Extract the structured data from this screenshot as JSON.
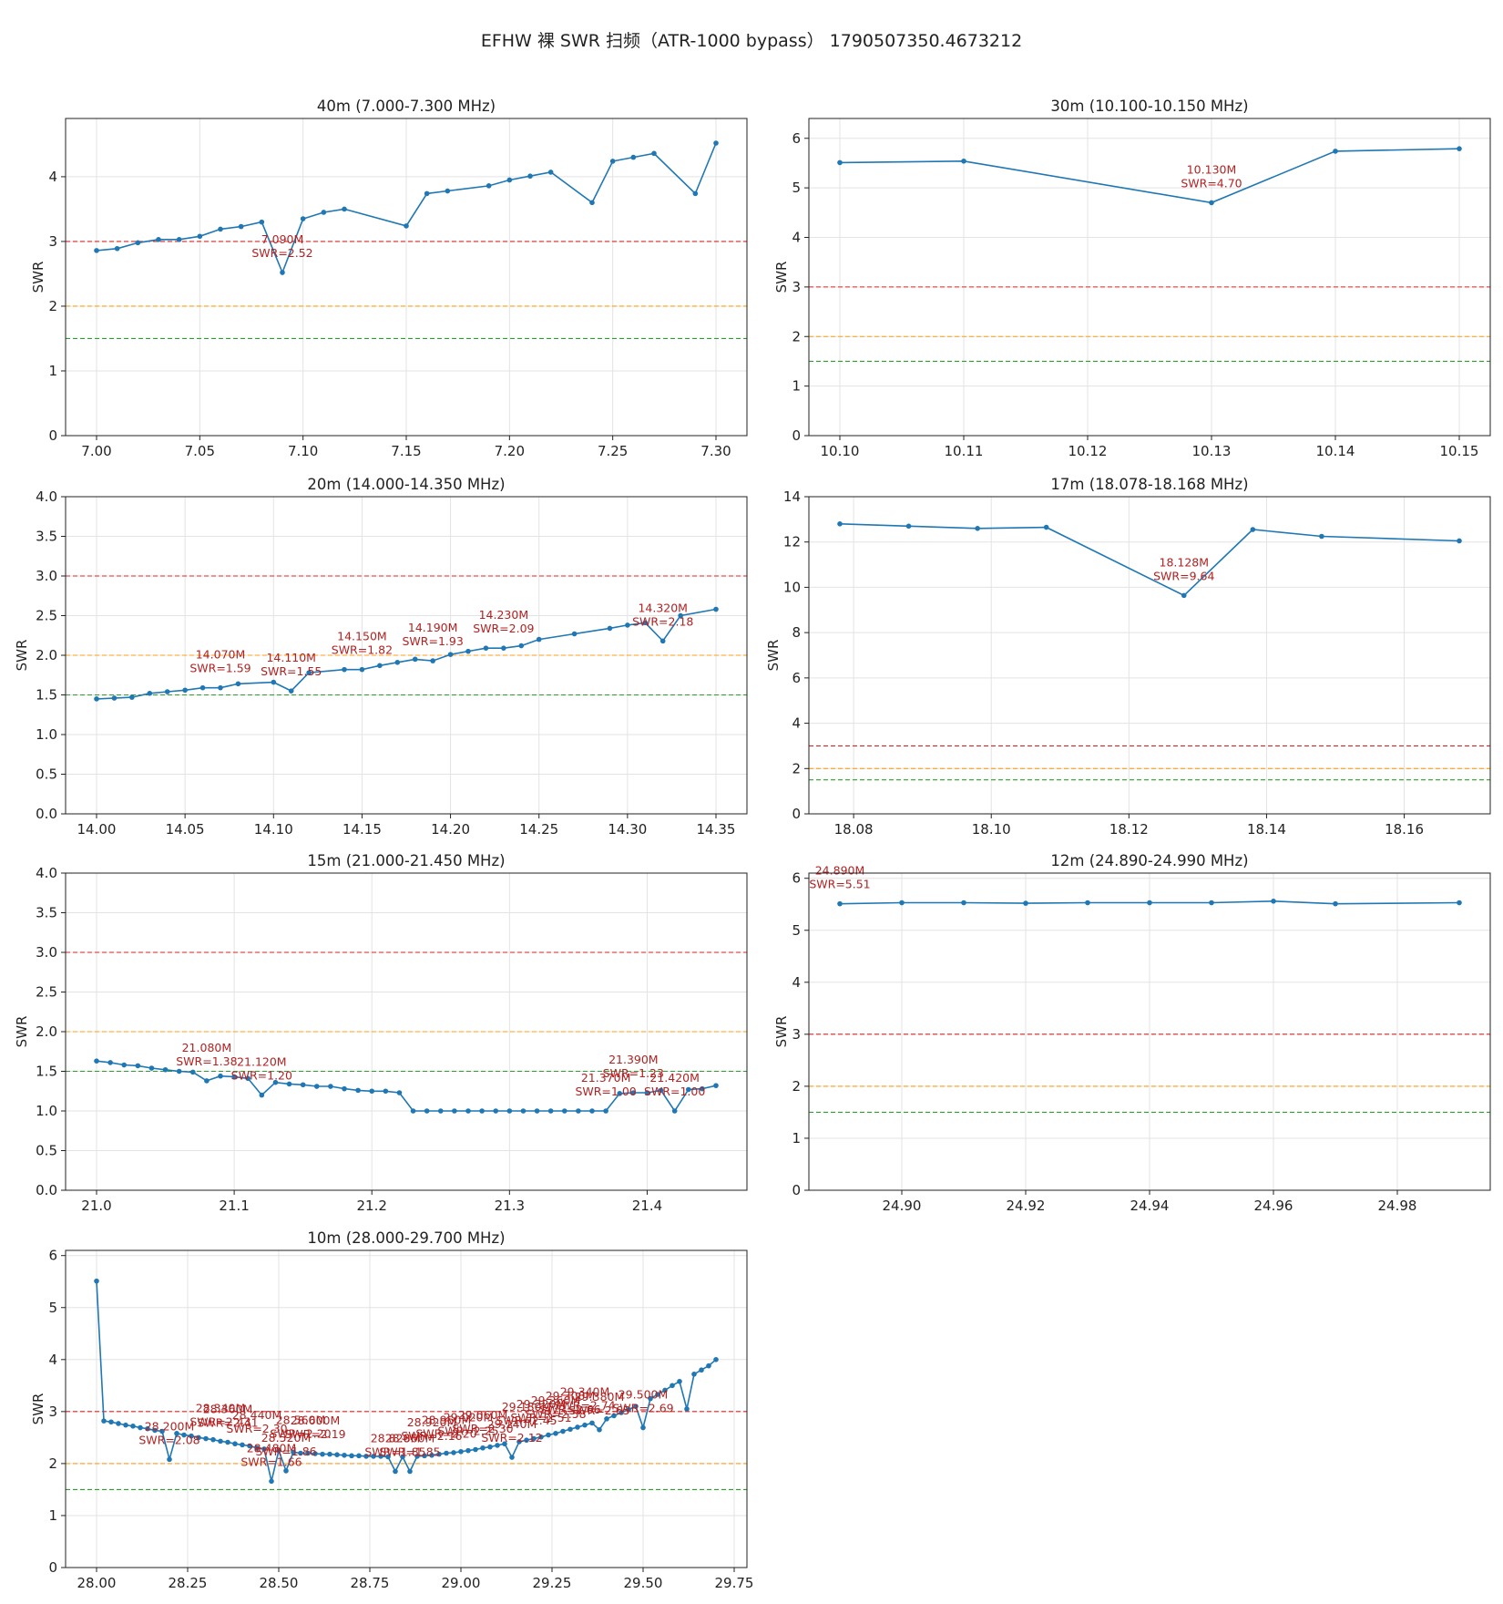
{
  "figure": {
    "title": "EFHW 裸 SWR 扫频（ATR-1000 bypass）  1790507350.4673212"
  },
  "colors": {
    "line": "#1f77b4",
    "red": "#d62728",
    "orange": "#ff9f10",
    "green": "#2ca02c",
    "annotation": "#b22222"
  },
  "chart_data": [
    {
      "type": "line",
      "title": "40m  (7.000-7.300 MHz)",
      "ylabel": "SWR",
      "xlim": [
        6.985,
        7.315
      ],
      "ylim": [
        0,
        4.9
      ],
      "xticks": [
        7.0,
        7.05,
        7.1,
        7.15,
        7.2,
        7.25,
        7.3
      ],
      "xtick_labels": [
        "7.00",
        "7.05",
        "7.10",
        "7.15",
        "7.20",
        "7.25",
        "7.30"
      ],
      "yticks": [
        0,
        1,
        2,
        3,
        4
      ],
      "ytick_labels": [
        "0",
        "1",
        "2",
        "3",
        "4"
      ],
      "reference_lines": [
        3.0,
        2.0,
        1.5
      ],
      "x": [
        7.0,
        7.01,
        7.02,
        7.03,
        7.04,
        7.05,
        7.06,
        7.07,
        7.08,
        7.09,
        7.1,
        7.11,
        7.12,
        7.15,
        7.16,
        7.17,
        7.19,
        7.2,
        7.21,
        7.22,
        7.24,
        7.25,
        7.26,
        7.27,
        7.29,
        7.3
      ],
      "y": [
        2.86,
        2.89,
        2.98,
        3.03,
        3.03,
        3.08,
        3.19,
        3.23,
        3.3,
        2.52,
        3.35,
        3.45,
        3.5,
        3.24,
        3.74,
        3.78,
        3.86,
        3.95,
        4.01,
        4.07,
        3.6,
        4.24,
        4.3,
        4.36,
        3.74,
        4.52
      ],
      "annotations": [
        {
          "x": 7.09,
          "y": 2.52,
          "lines": [
            "7.090M",
            "SWR=2.52"
          ]
        }
      ]
    },
    {
      "type": "line",
      "title": "30m  (10.100-10.150 MHz)",
      "ylabel": "SWR",
      "xlim": [
        10.0975,
        10.1525
      ],
      "ylim": [
        0,
        6.4
      ],
      "xticks": [
        10.1,
        10.11,
        10.12,
        10.13,
        10.14,
        10.15
      ],
      "xtick_labels": [
        "10.10",
        "10.11",
        "10.12",
        "10.13",
        "10.14",
        "10.15"
      ],
      "yticks": [
        0,
        1,
        2,
        3,
        4,
        5,
        6
      ],
      "ytick_labels": [
        "0",
        "1",
        "2",
        "3",
        "4",
        "5",
        "6"
      ],
      "reference_lines": [
        3.0,
        2.0,
        1.5
      ],
      "x": [
        10.1,
        10.11,
        10.13,
        10.14,
        10.15
      ],
      "y": [
        5.51,
        5.54,
        4.7,
        5.74,
        5.79
      ],
      "annotations": [
        {
          "x": 10.13,
          "y": 4.7,
          "lines": [
            "10.130M",
            "SWR=4.70"
          ]
        }
      ]
    },
    {
      "type": "line",
      "title": "20m  (14.000-14.350 MHz)",
      "ylabel": "SWR",
      "xlim": [
        13.9825,
        14.3675
      ],
      "ylim": [
        0,
        4.0
      ],
      "xticks": [
        14.0,
        14.05,
        14.1,
        14.15,
        14.2,
        14.25,
        14.3,
        14.35
      ],
      "xtick_labels": [
        "14.00",
        "14.05",
        "14.10",
        "14.15",
        "14.20",
        "14.25",
        "14.30",
        "14.35"
      ],
      "yticks": [
        0.0,
        0.5,
        1.0,
        1.5,
        2.0,
        2.5,
        3.0,
        3.5,
        4.0
      ],
      "ytick_labels": [
        "0.0",
        "0.5",
        "1.0",
        "1.5",
        "2.0",
        "2.5",
        "3.0",
        "3.5",
        "4.0"
      ],
      "reference_lines": [
        3.0,
        2.0,
        1.5
      ],
      "x": [
        14.0,
        14.01,
        14.02,
        14.03,
        14.04,
        14.05,
        14.06,
        14.07,
        14.08,
        14.1,
        14.11,
        14.12,
        14.14,
        14.15,
        14.16,
        14.17,
        14.18,
        14.19,
        14.2,
        14.21,
        14.22,
        14.23,
        14.24,
        14.25,
        14.27,
        14.29,
        14.3,
        14.31,
        14.32,
        14.33,
        14.35
      ],
      "y": [
        1.45,
        1.46,
        1.47,
        1.52,
        1.54,
        1.56,
        1.59,
        1.59,
        1.64,
        1.66,
        1.55,
        1.78,
        1.82,
        1.82,
        1.87,
        1.91,
        1.95,
        1.93,
        2.01,
        2.05,
        2.09,
        2.09,
        2.12,
        2.2,
        2.27,
        2.34,
        2.38,
        2.41,
        2.18,
        2.5,
        2.58
      ],
      "annotations": [
        {
          "x": 14.07,
          "y": 1.59,
          "lines": [
            "14.070M",
            "SWR=1.59"
          ]
        },
        {
          "x": 14.11,
          "y": 1.55,
          "lines": [
            "14.110M",
            "SWR=1.55"
          ]
        },
        {
          "x": 14.15,
          "y": 1.82,
          "lines": [
            "14.150M",
            "SWR=1.82"
          ]
        },
        {
          "x": 14.19,
          "y": 1.93,
          "lines": [
            "14.190M",
            "SWR=1.93"
          ]
        },
        {
          "x": 14.23,
          "y": 2.09,
          "lines": [
            "14.230M",
            "SWR=2.09"
          ]
        },
        {
          "x": 14.32,
          "y": 2.18,
          "lines": [
            "14.320M",
            "SWR=2.18"
          ]
        }
      ]
    },
    {
      "type": "line",
      "title": "17m  (18.078-18.168 MHz)",
      "ylabel": "SWR",
      "xlim": [
        18.0735,
        18.1725
      ],
      "ylim": [
        0,
        14
      ],
      "xticks": [
        18.08,
        18.1,
        18.12,
        18.14,
        18.16
      ],
      "xtick_labels": [
        "18.08",
        "18.10",
        "18.12",
        "18.14",
        "18.16"
      ],
      "yticks": [
        0,
        2,
        4,
        6,
        8,
        10,
        12,
        14
      ],
      "ytick_labels": [
        "0",
        "2",
        "4",
        "6",
        "8",
        "10",
        "12",
        "14"
      ],
      "reference_lines": [
        3.0,
        2.0,
        1.5
      ],
      "x": [
        18.078,
        18.088,
        18.098,
        18.108,
        18.128,
        18.138,
        18.148,
        18.168
      ],
      "y": [
        12.8,
        12.7,
        12.6,
        12.65,
        9.64,
        12.55,
        12.25,
        12.05
      ],
      "annotations": [
        {
          "x": 18.128,
          "y": 9.64,
          "lines": [
            "18.128M",
            "SWR=9.64"
          ]
        }
      ]
    },
    {
      "type": "line",
      "title": "15m  (21.000-21.450 MHz)",
      "ylabel": "SWR",
      "xlim": [
        20.9775,
        21.4725
      ],
      "ylim": [
        0,
        4.0
      ],
      "xticks": [
        21.0,
        21.1,
        21.2,
        21.3,
        21.4
      ],
      "xtick_labels": [
        "21.0",
        "21.1",
        "21.2",
        "21.3",
        "21.4"
      ],
      "yticks": [
        0.0,
        0.5,
        1.0,
        1.5,
        2.0,
        2.5,
        3.0,
        3.5,
        4.0
      ],
      "ytick_labels": [
        "0.0",
        "0.5",
        "1.0",
        "1.5",
        "2.0",
        "2.5",
        "3.0",
        "3.5",
        "4.0"
      ],
      "reference_lines": [
        3.0,
        2.0,
        1.5
      ],
      "x": [
        21.0,
        21.01,
        21.02,
        21.03,
        21.04,
        21.05,
        21.06,
        21.07,
        21.08,
        21.09,
        21.1,
        21.11,
        21.12,
        21.13,
        21.14,
        21.15,
        21.16,
        21.17,
        21.18,
        21.19,
        21.2,
        21.21,
        21.22,
        21.23,
        21.24,
        21.25,
        21.26,
        21.27,
        21.28,
        21.29,
        21.3,
        21.31,
        21.32,
        21.33,
        21.34,
        21.35,
        21.36,
        21.37,
        21.38,
        21.39,
        21.4,
        21.41,
        21.42,
        21.43,
        21.44,
        21.45
      ],
      "y": [
        1.63,
        1.61,
        1.58,
        1.57,
        1.54,
        1.52,
        1.5,
        1.49,
        1.38,
        1.44,
        1.43,
        1.41,
        1.2,
        1.36,
        1.34,
        1.33,
        1.31,
        1.31,
        1.28,
        1.26,
        1.25,
        1.25,
        1.23,
        1.0,
        1.0,
        1.0,
        1.0,
        1.0,
        1.0,
        1.0,
        1.0,
        1.0,
        1.0,
        1.0,
        1.0,
        1.0,
        1.0,
        1.0,
        1.22,
        1.23,
        1.23,
        1.26,
        1.0,
        1.27,
        1.28,
        1.32
      ],
      "annotations": [
        {
          "x": 21.08,
          "y": 1.38,
          "lines": [
            "21.080M",
            "SWR=1.38"
          ]
        },
        {
          "x": 21.12,
          "y": 1.2,
          "lines": [
            "21.120M",
            "SWR=1.20"
          ]
        },
        {
          "x": 21.37,
          "y": 1.0,
          "lines": [
            "21.370M",
            "SWR=1.00"
          ]
        },
        {
          "x": 21.39,
          "y": 1.23,
          "lines": [
            "21.390M",
            "SWR=1.23"
          ]
        },
        {
          "x": 21.42,
          "y": 1.0,
          "lines": [
            "21.420M",
            "SWR=1.00"
          ]
        }
      ]
    },
    {
      "type": "line",
      "title": "12m  (24.890-24.990 MHz)",
      "ylabel": "SWR",
      "xlim": [
        24.885,
        24.995
      ],
      "ylim": [
        0,
        6.1
      ],
      "xticks": [
        24.9,
        24.92,
        24.94,
        24.96,
        24.98
      ],
      "xtick_labels": [
        "24.90",
        "24.92",
        "24.94",
        "24.96",
        "24.98"
      ],
      "yticks": [
        0,
        1,
        2,
        3,
        4,
        5,
        6
      ],
      "ytick_labels": [
        "0",
        "1",
        "2",
        "3",
        "4",
        "5",
        "6"
      ],
      "reference_lines": [
        3.0,
        2.0,
        1.5
      ],
      "x": [
        24.89,
        24.9,
        24.91,
        24.92,
        24.93,
        24.94,
        24.95,
        24.96,
        24.97,
        24.99
      ],
      "y": [
        5.51,
        5.53,
        5.53,
        5.52,
        5.53,
        5.53,
        5.53,
        5.56,
        5.51,
        5.53
      ],
      "annotations": [
        {
          "x": 24.89,
          "y": 5.51,
          "lines": [
            "24.890M",
            "SWR=5.51"
          ]
        }
      ]
    },
    {
      "type": "line",
      "title": "10m  (28.000-29.700 MHz)",
      "ylabel": "SWR",
      "xlim": [
        27.915,
        29.785
      ],
      "ylim": [
        0,
        6.1
      ],
      "xticks": [
        28.0,
        28.25,
        28.5,
        28.75,
        29.0,
        29.25,
        29.5,
        29.75
      ],
      "xtick_labels": [
        "28.00",
        "28.25",
        "28.50",
        "28.75",
        "29.00",
        "29.25",
        "29.50",
        "29.75"
      ],
      "yticks": [
        0,
        1,
        2,
        3,
        4,
        5,
        6
      ],
      "ytick_labels": [
        "0",
        "1",
        "2",
        "3",
        "4",
        "5",
        "6"
      ],
      "reference_lines": [
        3.0,
        2.0,
        1.5
      ],
      "x": [
        28.0,
        28.02,
        28.04,
        28.06,
        28.08,
        28.1,
        28.12,
        28.14,
        28.16,
        28.18,
        28.2,
        28.22,
        28.24,
        28.26,
        28.28,
        28.3,
        28.32,
        28.34,
        28.36,
        28.38,
        28.4,
        28.42,
        28.44,
        28.46,
        28.48,
        28.5,
        28.52,
        28.54,
        28.56,
        28.58,
        28.6,
        28.62,
        28.64,
        28.66,
        28.68,
        28.7,
        28.72,
        28.74,
        28.76,
        28.78,
        28.8,
        28.82,
        28.84,
        28.86,
        28.88,
        28.9,
        28.92,
        28.94,
        28.96,
        28.98,
        29.0,
        29.02,
        29.04,
        29.06,
        29.08,
        29.1,
        29.12,
        29.14,
        29.16,
        29.18,
        29.2,
        29.22,
        29.24,
        29.26,
        29.28,
        29.3,
        29.32,
        29.34,
        29.36,
        29.38,
        29.4,
        29.42,
        29.44,
        29.46,
        29.48,
        29.5,
        29.52,
        29.54,
        29.56,
        29.58,
        29.6,
        29.62,
        29.64,
        29.66,
        29.68,
        29.7
      ],
      "y": [
        5.51,
        2.82,
        2.8,
        2.77,
        2.74,
        2.72,
        2.69,
        2.67,
        2.64,
        2.62,
        2.08,
        2.58,
        2.55,
        2.53,
        2.5,
        2.48,
        2.46,
        2.43,
        2.41,
        2.38,
        2.36,
        2.34,
        2.3,
        2.28,
        1.66,
        2.25,
        1.86,
        2.22,
        2.2,
        2.2,
        2.19,
        2.18,
        2.18,
        2.17,
        2.16,
        2.15,
        2.15,
        2.14,
        2.14,
        2.14,
        2.13,
        1.85,
        2.13,
        1.85,
        2.14,
        2.15,
        2.16,
        2.18,
        2.2,
        2.21,
        2.23,
        2.25,
        2.27,
        2.3,
        2.32,
        2.35,
        2.38,
        2.12,
        2.42,
        2.45,
        2.48,
        2.51,
        2.55,
        2.58,
        2.62,
        2.66,
        2.7,
        2.74,
        2.78,
        2.65,
        2.86,
        2.92,
        2.98,
        3.04,
        3.1,
        2.69,
        3.25,
        3.33,
        3.41,
        3.5,
        3.58,
        3.05,
        3.72,
        3.8,
        3.88,
        4.0
      ],
      "annotations": [
        {
          "x": 28.2,
          "y": 2.08,
          "lines": [
            "28.200M",
            "SWR=2.08"
          ]
        },
        {
          "x": 28.34,
          "y": 2.43,
          "lines": [
            "28.340M",
            "SWR=2.43"
          ]
        },
        {
          "x": 28.36,
          "y": 2.41,
          "lines": [
            "28.360M",
            "SWR=2.41"
          ]
        },
        {
          "x": 28.44,
          "y": 2.3,
          "lines": [
            "28.440M",
            "SWR=2.30"
          ]
        },
        {
          "x": 28.48,
          "y": 1.66,
          "lines": [
            "28.480M",
            "SWR=1.66"
          ]
        },
        {
          "x": 28.52,
          "y": 1.86,
          "lines": [
            "28.520M",
            "SWR=1.86"
          ]
        },
        {
          "x": 28.56,
          "y": 2.2,
          "lines": [
            "28.560M",
            "SWR=2.20"
          ]
        },
        {
          "x": 28.6,
          "y": 2.19,
          "lines": [
            "28.600M",
            "SWR=2.19"
          ]
        },
        {
          "x": 28.82,
          "y": 1.85,
          "lines": [
            "28.820M",
            "SWR=1.85"
          ]
        },
        {
          "x": 28.86,
          "y": 1.85,
          "lines": [
            "28.860M",
            "SWR=1.85"
          ]
        },
        {
          "x": 28.92,
          "y": 2.16,
          "lines": [
            "28.920M",
            "SWR=2.16"
          ]
        },
        {
          "x": 28.96,
          "y": 2.2,
          "lines": [
            "28.960M",
            "SWR=2.20"
          ]
        },
        {
          "x": 29.02,
          "y": 2.25,
          "lines": [
            "29.020M",
            "SWR=2.25"
          ]
        },
        {
          "x": 29.06,
          "y": 2.3,
          "lines": [
            "29.060M",
            "SWR=2.30"
          ]
        },
        {
          "x": 29.14,
          "y": 2.12,
          "lines": [
            "29.140M",
            "SWR=2.12"
          ]
        },
        {
          "x": 29.18,
          "y": 2.45,
          "lines": [
            "29.180M",
            "SWR=2.45"
          ]
        },
        {
          "x": 29.22,
          "y": 2.51,
          "lines": [
            "29.220M",
            "SWR=2.51"
          ]
        },
        {
          "x": 29.26,
          "y": 2.58,
          "lines": [
            "29.260M",
            "SWR=2.58"
          ]
        },
        {
          "x": 29.3,
          "y": 2.66,
          "lines": [
            "29.300M",
            "SWR=2.66"
          ]
        },
        {
          "x": 29.34,
          "y": 2.74,
          "lines": [
            "29.340M",
            "SWR=2.74"
          ]
        },
        {
          "x": 29.38,
          "y": 2.65,
          "lines": [
            "29.380M",
            "SWR=2.65"
          ]
        },
        {
          "x": 29.5,
          "y": 2.69,
          "lines": [
            "29.500M",
            "SWR=2.69"
          ]
        }
      ]
    }
  ]
}
